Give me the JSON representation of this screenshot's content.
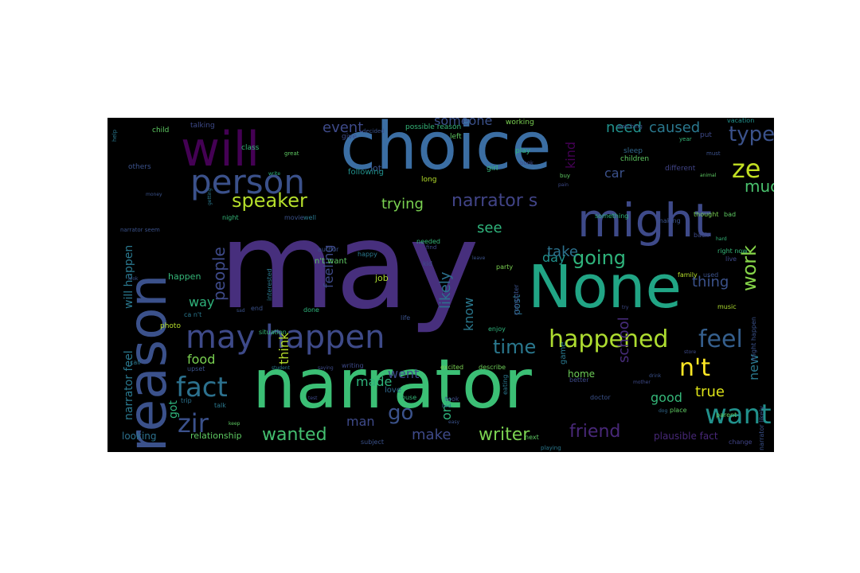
{
  "cloud": {
    "background": "#000000",
    "palette": {
      "dark_purple": "#440154",
      "purple": "#472f7d",
      "indigo": "#3b518b",
      "blue": "#2c718e",
      "teal": "#21918c",
      "green_teal": "#28ae80",
      "green": "#5ec962",
      "lime": "#addc30",
      "yellow": "#fde725"
    },
    "words": [
      {
        "text": "may",
        "color": "#472f7d"
      },
      {
        "text": "choice",
        "color": "#3b6ea3"
      },
      {
        "text": "narrator",
        "color": "#3bbf75"
      },
      {
        "text": "reason",
        "color": "#3b518b"
      },
      {
        "text": "None",
        "color": "#21a585"
      },
      {
        "text": "will",
        "color": "#440154"
      },
      {
        "text": "might",
        "color": "#3e4a89"
      },
      {
        "text": "person",
        "color": "#3b518b"
      },
      {
        "text": "may happen",
        "color": "#3e4a89"
      },
      {
        "text": "happened",
        "color": "#addc30"
      },
      {
        "text": "feel",
        "color": "#355f8d"
      },
      {
        "text": "n't",
        "color": "#fde725"
      },
      {
        "text": "want",
        "color": "#21918c"
      },
      {
        "text": "fact",
        "color": "#2c718e"
      },
      {
        "text": "zir",
        "color": "#3b518b"
      },
      {
        "text": "ze",
        "color": "#c2df23"
      },
      {
        "text": "speaker",
        "color": "#b5de2b"
      },
      {
        "text": "going",
        "color": "#2fb47c"
      },
      {
        "text": "work",
        "color": "#86d549"
      },
      {
        "text": "time",
        "color": "#2a788e"
      },
      {
        "text": "narrator s",
        "color": "#414487"
      },
      {
        "text": "type",
        "color": "#3b528b"
      },
      {
        "text": "people",
        "color": "#3e4a89"
      },
      {
        "text": "wanted",
        "color": "#44bf70"
      },
      {
        "text": "writer",
        "color": "#7ad151"
      },
      {
        "text": "friend",
        "color": "#482878"
      },
      {
        "text": "make",
        "color": "#3e4a89"
      },
      {
        "text": "go",
        "color": "#3b528b"
      },
      {
        "text": "much",
        "color": "#4ac16d"
      },
      {
        "text": "trying",
        "color": "#7ad151"
      },
      {
        "text": "need",
        "color": "#21918c"
      },
      {
        "text": "caused",
        "color": "#2a788e"
      },
      {
        "text": "event",
        "color": "#3e4a89"
      },
      {
        "text": "someone",
        "color": "#3b518b"
      },
      {
        "text": "kind",
        "color": "#440154"
      },
      {
        "text": "car",
        "color": "#3b518b"
      },
      {
        "text": "see",
        "color": "#2fb47c"
      },
      {
        "text": "day",
        "color": "#21918c"
      },
      {
        "text": "take",
        "color": "#2c728e"
      },
      {
        "text": "thing",
        "color": "#3b528b"
      },
      {
        "text": "true",
        "color": "#dde318"
      },
      {
        "text": "good",
        "color": "#35b779"
      },
      {
        "text": "new",
        "color": "#2a788e"
      },
      {
        "text": "school",
        "color": "#472c7a"
      },
      {
        "text": "food",
        "color": "#7ad151"
      },
      {
        "text": "way",
        "color": "#2fb47c"
      },
      {
        "text": "feeling",
        "color": "#3e4a89"
      },
      {
        "text": "likely",
        "color": "#2c718e"
      },
      {
        "text": "know",
        "color": "#2a788e"
      },
      {
        "text": "one",
        "color": "#2fb47c"
      },
      {
        "text": "went",
        "color": "#3e4a89"
      },
      {
        "text": "made",
        "color": "#2fb47c"
      },
      {
        "text": "think",
        "color": "#b5de2b"
      },
      {
        "text": "man",
        "color": "#3e4a89"
      },
      {
        "text": "got",
        "color": "#2fb47c"
      },
      {
        "text": "will happen",
        "color": "#2a788e"
      },
      {
        "text": "narrator feel",
        "color": "#2a788e"
      },
      {
        "text": "relationship",
        "color": "#5ec962"
      },
      {
        "text": "plausible fact",
        "color": "#482878"
      },
      {
        "text": "looking",
        "color": "#2c718e"
      },
      {
        "text": "n't want",
        "color": "#5ec962"
      },
      {
        "text": "happen",
        "color": "#35b779"
      },
      {
        "text": "job",
        "color": "#addc30"
      },
      {
        "text": "post",
        "color": "#2c718e"
      },
      {
        "text": "home",
        "color": "#6ece58"
      },
      {
        "text": "lot",
        "color": "#3b528b"
      },
      {
        "text": "game",
        "color": "#2a788e"
      },
      {
        "text": "love",
        "color": "#31688e"
      },
      {
        "text": "following",
        "color": "#21918c"
      },
      {
        "text": "talking",
        "color": "#3e4a89"
      },
      {
        "text": "possible reason",
        "color": "#35b779"
      },
      {
        "text": "working",
        "color": "#7ad151"
      },
      {
        "text": "vacation",
        "color": "#21918c"
      },
      {
        "text": "child",
        "color": "#5ec962"
      },
      {
        "text": "class",
        "color": "#35b779"
      },
      {
        "text": "left",
        "color": "#5ec962"
      },
      {
        "text": "play",
        "color": "#2fb47c"
      },
      {
        "text": "sleep",
        "color": "#31688e"
      },
      {
        "text": "children",
        "color": "#5ec962"
      },
      {
        "text": "different",
        "color": "#414487"
      },
      {
        "text": "put",
        "color": "#3e4a89"
      },
      {
        "text": "long",
        "color": "#b5de2b"
      },
      {
        "text": "girl",
        "color": "#35b779"
      },
      {
        "text": "others",
        "color": "#3b528b"
      },
      {
        "text": "give",
        "color": "#3e4a89"
      },
      {
        "text": "interested",
        "color": "#2a788e"
      },
      {
        "text": "end",
        "color": "#3b528b"
      },
      {
        "text": "done",
        "color": "#2fb47c"
      },
      {
        "text": "photo",
        "color": "#b5de2b"
      },
      {
        "text": "ca n't",
        "color": "#2a788e"
      },
      {
        "text": "situation",
        "color": "#35b779"
      },
      {
        "text": "upset",
        "color": "#3b528b"
      },
      {
        "text": "call",
        "color": "#2a788e"
      },
      {
        "text": "trip",
        "color": "#2c718e"
      },
      {
        "text": "talk",
        "color": "#2a788e"
      },
      {
        "text": "house",
        "color": "#35b779"
      },
      {
        "text": "took",
        "color": "#3e4a89"
      },
      {
        "text": "eating",
        "color": "#2a788e"
      },
      {
        "text": "better",
        "color": "#3e4a89"
      },
      {
        "text": "doctor",
        "color": "#3b528b"
      },
      {
        "text": "right now",
        "color": "#35b779"
      },
      {
        "text": "place",
        "color": "#5ec962"
      },
      {
        "text": "parent",
        "color": "#5ec962"
      },
      {
        "text": "music",
        "color": "#addc30"
      },
      {
        "text": "might happen",
        "color": "#3b528b"
      },
      {
        "text": "change",
        "color": "#414487"
      },
      {
        "text": "excited",
        "color": "#7ad151"
      },
      {
        "text": "describe",
        "color": "#6ece58"
      },
      {
        "text": "writing",
        "color": "#3e4a89"
      },
      {
        "text": "enjoy",
        "color": "#2fb47c"
      },
      {
        "text": "computer",
        "color": "#3b528b"
      },
      {
        "text": "life",
        "color": "#3b528b"
      },
      {
        "text": "author",
        "color": "#3b528b"
      },
      {
        "text": "happy",
        "color": "#2a788e"
      },
      {
        "text": "party",
        "color": "#7ad151"
      },
      {
        "text": "kid",
        "color": "#3e4a89"
      },
      {
        "text": "family",
        "color": "#b5de2b"
      },
      {
        "text": "used",
        "color": "#3b528b"
      },
      {
        "text": "live",
        "color": "#3e4a89"
      },
      {
        "text": "subject",
        "color": "#3b528b"
      },
      {
        "text": "next",
        "color": "#5ec962"
      },
      {
        "text": "playing",
        "color": "#2a788e"
      },
      {
        "text": "movie",
        "color": "#3b528b"
      },
      {
        "text": "night",
        "color": "#35b779"
      },
      {
        "text": "well",
        "color": "#2a788e"
      },
      {
        "text": "something",
        "color": "#2fb47c"
      },
      {
        "text": "making",
        "color": "#3b528b"
      },
      {
        "text": "back",
        "color": "#3e4a89"
      },
      {
        "text": "thought",
        "color": "#7ad151"
      },
      {
        "text": "bad",
        "color": "#5ec962"
      },
      {
        "text": "narrator likely",
        "color": "#3b528b"
      },
      {
        "text": "narrator seem",
        "color": "#3b528b"
      },
      {
        "text": "help",
        "color": "#2a788e"
      },
      {
        "text": "year",
        "color": "#35b779"
      },
      {
        "text": "must",
        "color": "#3b528b"
      },
      {
        "text": "great",
        "color": "#5ec962"
      },
      {
        "text": "needed",
        "color": "#35b779"
      },
      {
        "text": "find",
        "color": "#3e4a89"
      },
      {
        "text": "watching",
        "color": "#3b528b"
      },
      {
        "text": "book",
        "color": "#3e4a89"
      },
      {
        "text": "buy",
        "color": "#5ec962"
      },
      {
        "text": "decided",
        "color": "#3b528b"
      },
      {
        "text": "student",
        "color": "#2a788e"
      },
      {
        "text": "store",
        "color": "#3e4a89"
      },
      {
        "text": "drink",
        "color": "#3b528b"
      },
      {
        "text": "hard",
        "color": "#35b779"
      },
      {
        "text": "animal",
        "color": "#5ec962"
      },
      {
        "text": "dog",
        "color": "#31688e"
      },
      {
        "text": "keep",
        "color": "#5ec962"
      },
      {
        "text": "test",
        "color": "#3e4a89"
      },
      {
        "text": "easy",
        "color": "#3b528b"
      },
      {
        "text": "bed",
        "color": "#2a788e"
      },
      {
        "text": "saying",
        "color": "#3e4a89"
      },
      {
        "text": "look",
        "color": "#3b528b"
      },
      {
        "text": "write",
        "color": "#2fb47c"
      },
      {
        "text": "try",
        "color": "#3e4a89"
      },
      {
        "text": "sad",
        "color": "#3b528b"
      },
      {
        "text": "mother",
        "color": "#3e4a89"
      },
      {
        "text": "getting",
        "color": "#2a788e"
      },
      {
        "text": "leave",
        "color": "#3b528b"
      },
      {
        "text": "pain",
        "color": "#3e4a89"
      },
      {
        "text": "money",
        "color": "#3b528b"
      }
    ]
  }
}
